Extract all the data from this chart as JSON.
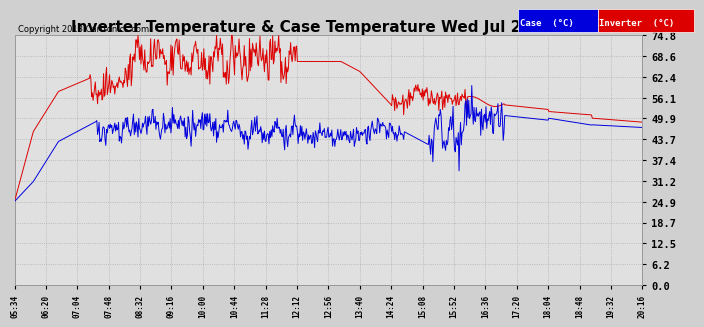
{
  "title": "Inverter Temperature & Case Temperature Wed Jul 24 20:20",
  "copyright": "Copyright 2013 Cartronics.com",
  "legend_case_label": "Case  (°C)",
  "legend_inv_label": "Inverter  (°C)",
  "yticks": [
    0.0,
    6.2,
    12.5,
    18.7,
    24.9,
    31.2,
    37.4,
    43.7,
    49.9,
    56.1,
    62.4,
    68.6,
    74.8
  ],
  "ymin": 0.0,
  "ymax": 74.8,
  "bg_color": "#d0d0d0",
  "plot_bg_color": "#e0e0e0",
  "grid_color": "#b0b0b0",
  "case_line_color": "#0000dd",
  "inv_line_color": "#dd0000",
  "title_fontsize": 11,
  "xtick_labels": [
    "05:34",
    "06:20",
    "07:04",
    "07:48",
    "08:32",
    "09:16",
    "10:00",
    "10:44",
    "11:28",
    "12:12",
    "12:56",
    "13:40",
    "14:24",
    "15:08",
    "15:52",
    "16:36",
    "17:20",
    "18:04",
    "18:48",
    "19:32",
    "20:16"
  ]
}
